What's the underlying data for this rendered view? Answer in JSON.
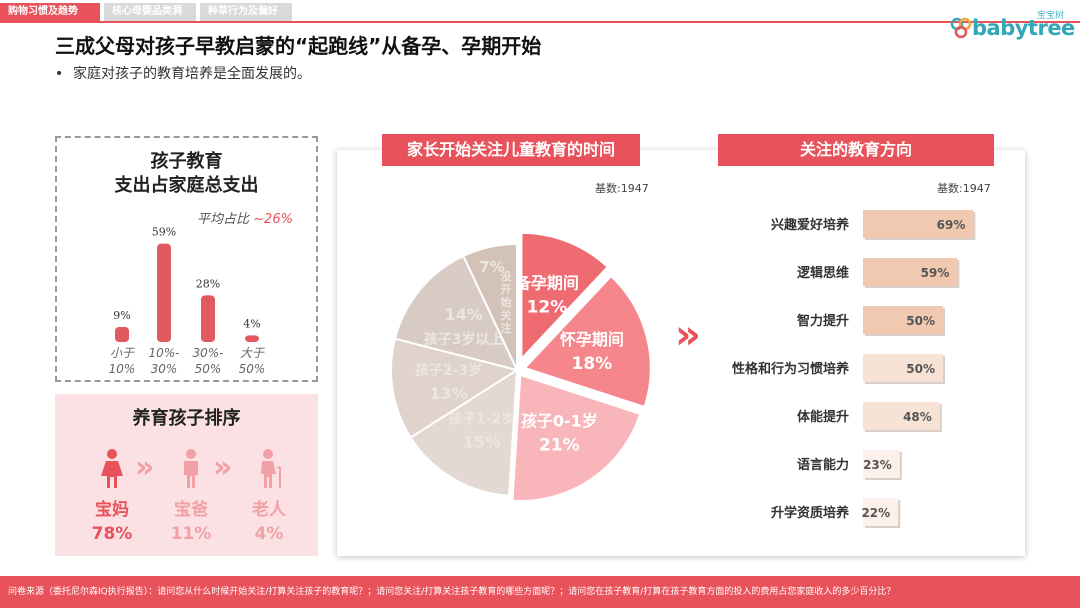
{
  "nav": {
    "tabs": [
      "购物习惯及趋势",
      "核心母婴品类洞察",
      "种草行为及偏好"
    ]
  },
  "logo": {
    "cn": "宝宝树",
    "en": "babytree"
  },
  "title": "三成父母对孩子早教启蒙的“起跑线”从备孕、孕期开始",
  "bullet": "家庭对孩子的教育培养是全面发展的。",
  "edu_panel": {
    "title_line1": "孩子教育",
    "title_line2": "支出占家庭总支出",
    "avg_label": "平均占比",
    "avg_value": "~26%"
  },
  "rank_panel": {
    "title": "养育孩子排序",
    "items": [
      {
        "name": "宝妈",
        "value": "78%",
        "color": "#e8525a"
      },
      {
        "name": "宝爸",
        "value": "11%",
        "color": "#f1a0a6"
      },
      {
        "name": "老人",
        "value": "4%",
        "color": "#f1a0a6"
      }
    ]
  },
  "pie_panel": {
    "header": "家长开始关注儿童教育的时间",
    "base": "基数:1947"
  },
  "bar_panel": {
    "header": "关注的教育方向",
    "base": "基数:1947"
  },
  "chart_data": [
    {
      "type": "bar",
      "categories": [
        "小于10%",
        "10%-30%",
        "30%-50%",
        "大于50%"
      ],
      "category_lines": [
        [
          "小于",
          "10%"
        ],
        [
          "10%-",
          "30%"
        ],
        [
          "30%-",
          "50%"
        ],
        [
          "大于",
          "50%"
        ]
      ],
      "values": [
        9,
        59,
        28,
        4
      ],
      "value_labels": [
        "9%",
        "59%",
        "28%",
        "4%"
      ],
      "ylim": [
        0,
        60
      ],
      "color": "#e05a60"
    },
    {
      "type": "pie",
      "categories": [
        "备孕期间",
        "怀孕期间",
        "孩子0-1岁",
        "孩子1-2岁",
        "孩子2-3岁",
        "孩子3岁以上",
        "没开始关注"
      ],
      "values": [
        12,
        18,
        21,
        15,
        13,
        14,
        7
      ],
      "value_labels": [
        "12%",
        "18%",
        "21%",
        "15%",
        "13%",
        "14%",
        "7%"
      ],
      "colors": [
        "#ee6b72",
        "#f5868c",
        "#f9b6ba",
        "#e3d8d2",
        "#dfd3cb",
        "#d8cbc3",
        "#d2c2b8"
      ]
    },
    {
      "type": "bar",
      "orientation": "horizontal",
      "categories": [
        "兴趣爱好培养",
        "逻辑思维",
        "智力提升",
        "性格和行为习惯培养",
        "体能提升",
        "语言能力",
        "升学资质培养"
      ],
      "values": [
        69,
        59,
        50,
        50,
        48,
        23,
        22
      ],
      "value_labels": [
        "69%",
        "59%",
        "50%",
        "50%",
        "48%",
        "23%",
        "22%"
      ],
      "colors": [
        "#f0c9b0",
        "#f0c9b0",
        "#f0c9b0",
        "#f6e3d6",
        "#f6e3d6",
        "#fbf1ea",
        "#fbf1ea"
      ],
      "xlim": [
        0,
        100
      ]
    }
  ],
  "footer": "问卷来源（委托尼尔森IQ执行报告）：请问您从什么时候开始关注/打算关注孩子的教育呢？；请问您关注/打算关注孩子教育的哪些方面呢？；请问您在孩子教育/打算在孩子教育方面的投入的费用占您家庭收入的多少百分比？"
}
